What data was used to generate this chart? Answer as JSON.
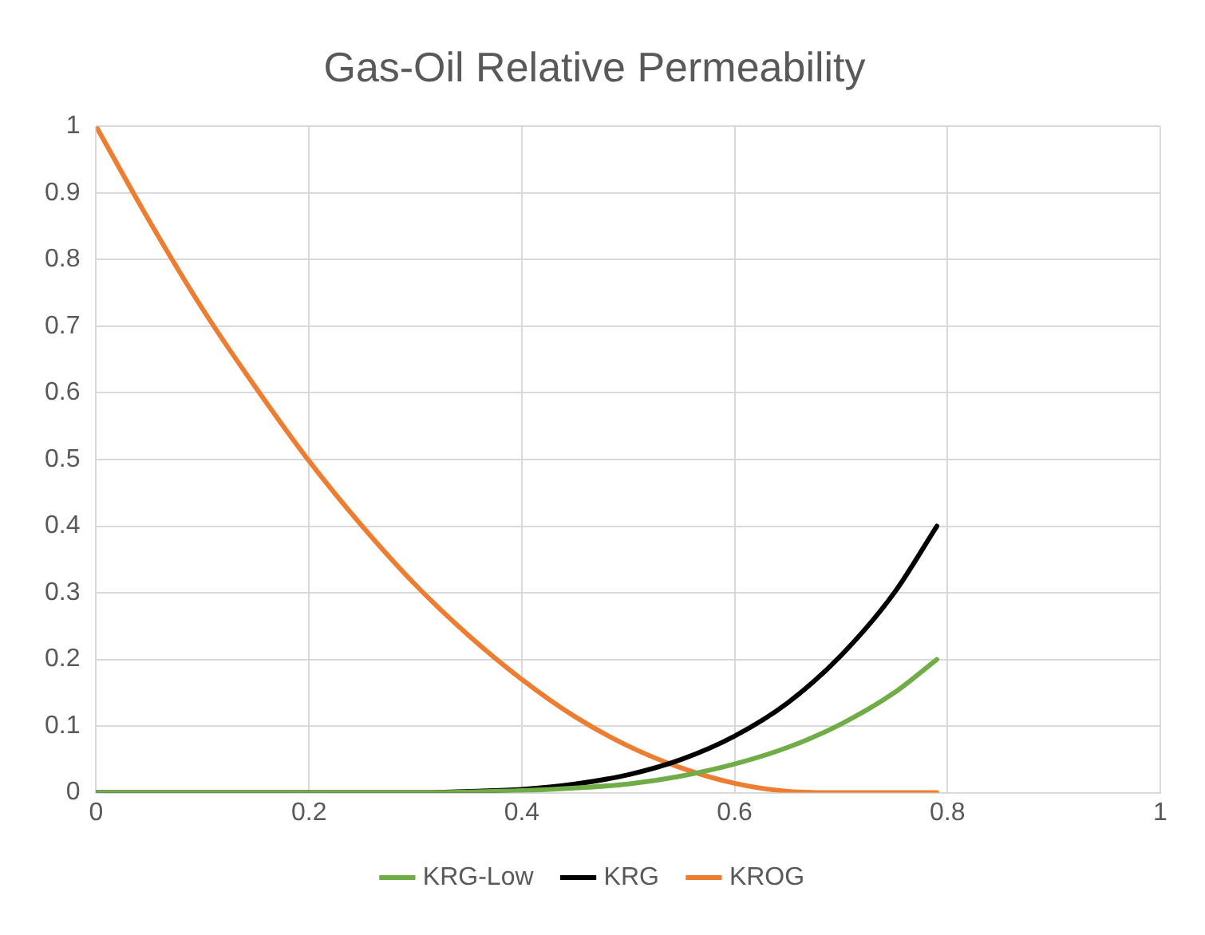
{
  "chart_data": {
    "type": "line",
    "title": "Gas-Oil Relative Permeability",
    "x": [
      0,
      0.05,
      0.1,
      0.15,
      0.2,
      0.25,
      0.3,
      0.35,
      0.4,
      0.45,
      0.5,
      0.55,
      0.6,
      0.65,
      0.7,
      0.75,
      0.79
    ],
    "series": [
      {
        "name": "KRG-Low",
        "color": "#70ad47",
        "values": [
          0,
          0,
          0,
          0,
          0,
          0,
          0,
          0.001,
          0.003,
          0.007,
          0.013,
          0.025,
          0.043,
          0.068,
          0.103,
          0.15,
          0.2
        ]
      },
      {
        "name": "KRG",
        "color": "#000000",
        "values": [
          0,
          0,
          0,
          0,
          0,
          0,
          0,
          0.002,
          0.005,
          0.013,
          0.027,
          0.05,
          0.085,
          0.135,
          0.206,
          0.3,
          0.4
        ]
      },
      {
        "name": "KROG",
        "color": "#ed7d31",
        "values": [
          1,
          0.858,
          0.726,
          0.608,
          0.498,
          0.4,
          0.312,
          0.236,
          0.17,
          0.114,
          0.07,
          0.037,
          0.014,
          0.002,
          0,
          0,
          0
        ]
      }
    ],
    "xlim": [
      0,
      1
    ],
    "xticks": [
      0,
      0.2,
      0.4,
      0.6,
      0.8,
      1
    ],
    "ylim": [
      0,
      1
    ],
    "yticks": [
      0,
      0.1,
      0.2,
      0.3,
      0.4,
      0.5,
      0.6,
      0.7,
      0.8,
      0.9,
      1
    ],
    "grid": true,
    "legend": "bottom",
    "marker": "none",
    "line_style": "solid"
  }
}
